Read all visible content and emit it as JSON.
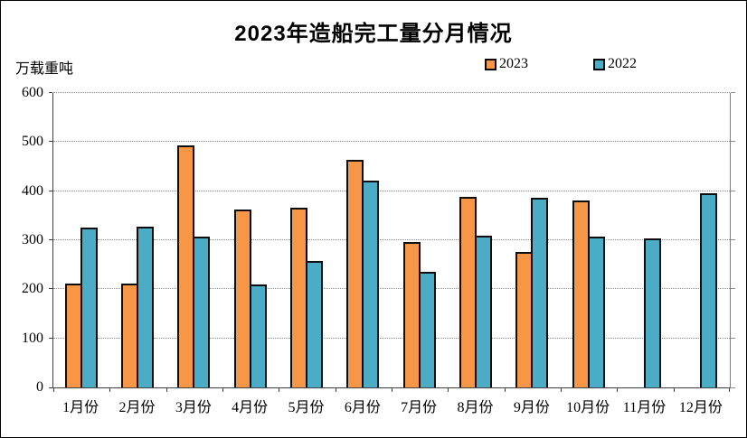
{
  "title": "2023年造船完工量分月情况",
  "y_axis_unit": "万载重吨",
  "legend": {
    "items": [
      {
        "label": "2023",
        "color": "#F79646"
      },
      {
        "label": "2022",
        "color": "#4BACC6"
      }
    ],
    "position": "top-right"
  },
  "colors": {
    "series_2023": "#F79646",
    "series_2022": "#4BACC6",
    "bar_border": "#0D0D0D",
    "gridline": "#8C8C8C",
    "axis": "#3F3F3F",
    "background": "#FFFFFF",
    "text": "#000000"
  },
  "chart_data": {
    "type": "bar",
    "title": "2023年造船完工量分月情况",
    "xlabel": "",
    "ylabel": "万载重吨",
    "categories": [
      "1月份",
      "2月份",
      "3月份",
      "4月份",
      "5月份",
      "6月份",
      "7月份",
      "8月份",
      "9月份",
      "10月份",
      "11月份",
      "12月份"
    ],
    "series": [
      {
        "name": "2023",
        "color": "#F79646",
        "values": [
          212,
          212,
          494,
          362,
          367,
          464,
          296,
          389,
          277,
          381,
          null,
          null
        ]
      },
      {
        "name": "2022",
        "color": "#4BACC6",
        "values": [
          326,
          328,
          308,
          210,
          257,
          421,
          236,
          310,
          386,
          308,
          303,
          396
        ]
      }
    ],
    "ylim": [
      0,
      600
    ],
    "yticks": [
      600,
      500,
      400,
      300,
      200,
      100,
      0
    ],
    "grid": "horizontal-dotted",
    "legend_position": "top-right"
  }
}
